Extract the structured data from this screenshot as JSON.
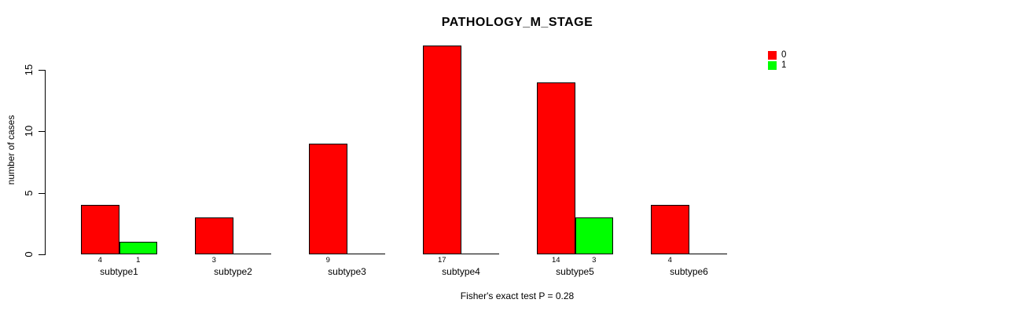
{
  "title": "PATHOLOGY_M_STAGE",
  "y_axis": {
    "label": "number of cases",
    "ticks": [
      0,
      5,
      10,
      15
    ]
  },
  "footer": "Fisher's exact test P = 0.28",
  "legend": {
    "items": [
      {
        "label": "0",
        "color": "#ff0000"
      },
      {
        "label": "1",
        "color": "#00ff00"
      }
    ]
  },
  "chart_data": {
    "type": "bar",
    "title": "PATHOLOGY_M_STAGE",
    "xlabel": "",
    "ylabel": "number of cases",
    "categories": [
      "subtype1",
      "subtype2",
      "subtype3",
      "subtype4",
      "subtype5",
      "subtype6"
    ],
    "series": [
      {
        "name": "0",
        "color": "#ff0000",
        "values": [
          4,
          3,
          9,
          17,
          14,
          4
        ]
      },
      {
        "name": "1",
        "color": "#00ff00",
        "values": [
          1,
          0,
          0,
          0,
          3,
          0
        ]
      }
    ],
    "bar_value_labels_shown_only_if_nonzero": true,
    "ylim": [
      0,
      17
    ],
    "yticks": [
      0,
      5,
      10,
      15
    ],
    "grid": false,
    "legend_position": "top-right",
    "annotation": "Fisher's exact test P = 0.28"
  }
}
